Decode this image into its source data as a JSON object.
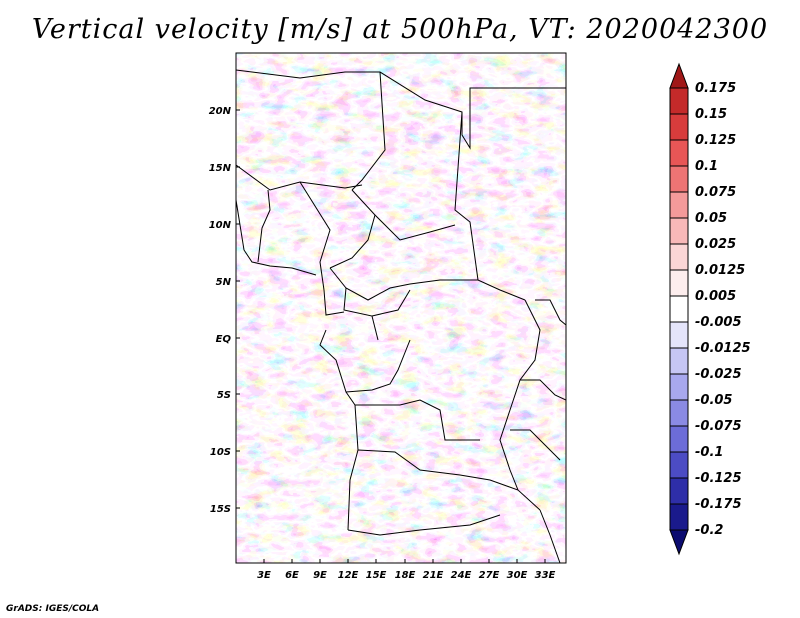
{
  "title": "Vertical velocity [m/s] at 500hPa, VT: 2020042300",
  "credit": "GrADS: IGES/COLA",
  "map": {
    "lat_labels": [
      "20N",
      "15N",
      "10N",
      "5N",
      "EQ",
      "5S",
      "10S",
      "15S"
    ],
    "lon_labels": [
      "3E",
      "6E",
      "9E",
      "12E",
      "15E",
      "18E",
      "21E",
      "24E",
      "27E",
      "30E",
      "33E"
    ],
    "variable": "Vertical velocity",
    "units": "m/s",
    "level": "500hPa",
    "valid_time": "2020042300"
  },
  "colorbar": {
    "labels": [
      "0.175",
      "0.15",
      "0.125",
      "0.1",
      "0.075",
      "0.05",
      "0.025",
      "0.0125",
      "0.005",
      "-0.005",
      "-0.0125",
      "-0.025",
      "-0.05",
      "-0.075",
      "-0.1",
      "-0.125",
      "-0.175",
      "-0.2"
    ],
    "colors": [
      "#a01818",
      "#c42a2a",
      "#d83c3c",
      "#e85656",
      "#ee7474",
      "#f49a9a",
      "#f8b8b8",
      "#fbd6d6",
      "#fdeeee",
      "#ffffff",
      "#e4e4fa",
      "#c6c6f4",
      "#a8a8ee",
      "#8a8ae4",
      "#6c6cd8",
      "#4c4cc4",
      "#2e2ea8",
      "#1a1a8c",
      "#0c0c70"
    ]
  }
}
